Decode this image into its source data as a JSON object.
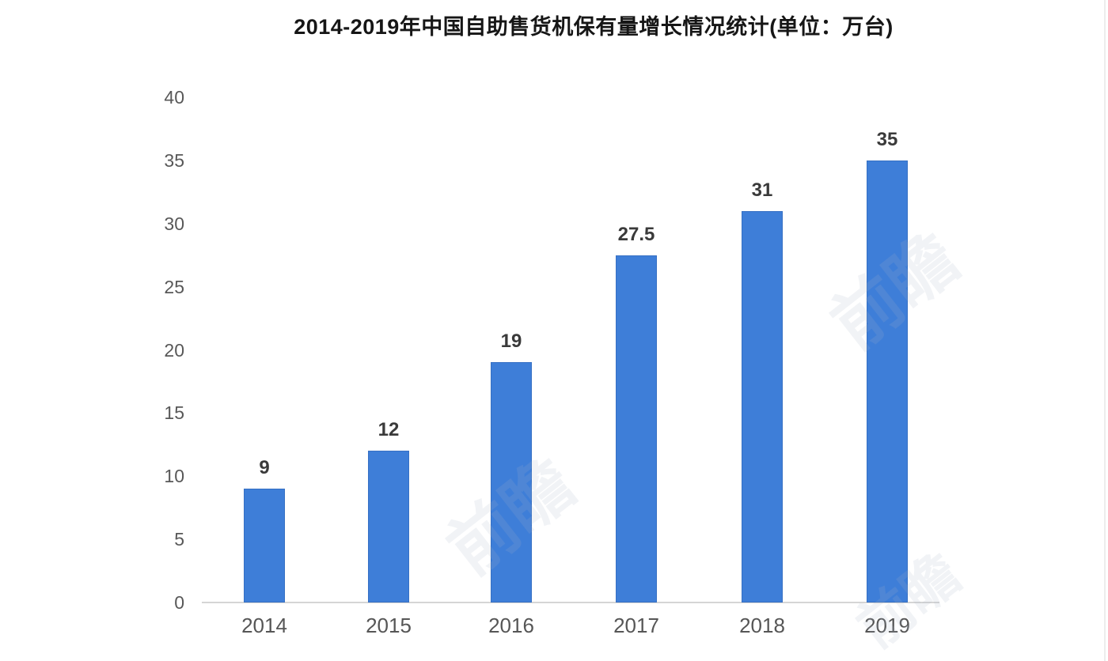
{
  "chart_data": {
    "type": "bar",
    "title": "2014-2019年中国自助售货机保有量增长情况统计(单位：万台)",
    "categories": [
      "2014",
      "2015",
      "2016",
      "2017",
      "2018",
      "2019"
    ],
    "values": [
      9,
      12,
      19,
      27.5,
      31,
      35
    ],
    "value_labels": [
      "9",
      "12",
      "19",
      "27.5",
      "31",
      "35"
    ],
    "yticks": [
      "0",
      "5",
      "10",
      "15",
      "20",
      "25",
      "30",
      "35",
      "40"
    ],
    "ylim": [
      0,
      40
    ],
    "xlabel": "",
    "ylabel": "",
    "unit": "万台",
    "grid": false,
    "legend": false,
    "bar_color": "#3e7ed8",
    "axis_line_color": "#d5d5d5",
    "tick_text_color": "#585858",
    "value_text_color": "#3a3a3a",
    "title_text_color": "#161616"
  },
  "watermark": {
    "text": "前瞻"
  }
}
